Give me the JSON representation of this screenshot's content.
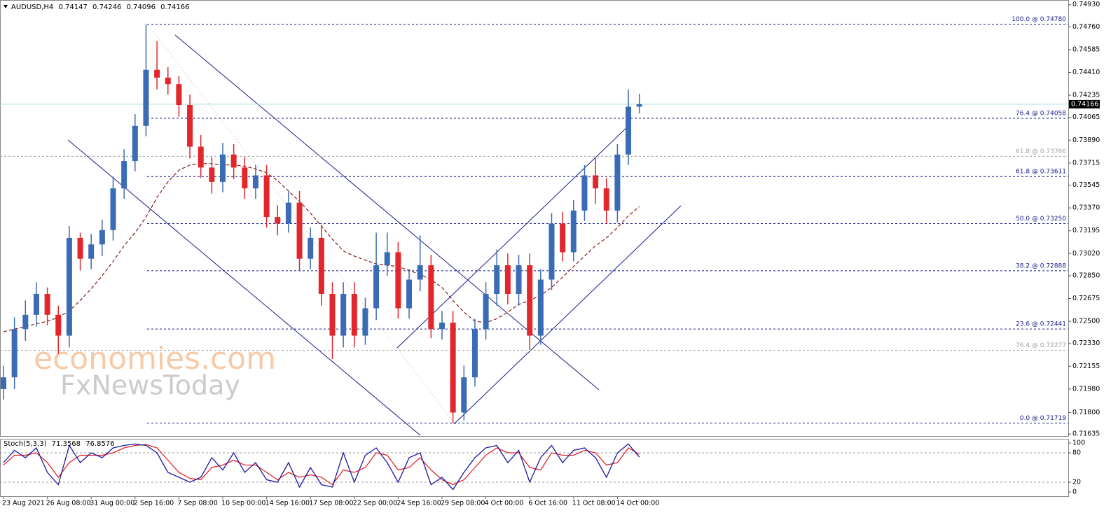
{
  "chart_data": {
    "type": "candlestick",
    "symbol": "AUDUSD,H4",
    "categories": [
      "23 Aug 2021",
      null,
      null,
      null,
      "26 Aug 08:00",
      null,
      null,
      null,
      "31 Aug 00:00",
      null,
      null,
      null,
      "2 Sep 16:00",
      null,
      null,
      null,
      "7 Sep 08:00",
      null,
      null,
      null,
      "10 Sep 00:00",
      null,
      null,
      null,
      "14 Sep 16:00",
      null,
      null,
      null,
      "17 Sep 08:00",
      null,
      null,
      null,
      "22 Sep 00:00",
      null,
      null,
      null,
      "24 Sep 16:00",
      null,
      null,
      null,
      "29 Sep 08:00",
      null,
      null,
      null,
      "4 Oct 00:00",
      null,
      null,
      null,
      "6 Oct 16:00",
      null,
      null,
      null,
      "11 Oct 08:00",
      null,
      null,
      null,
      "14 Oct 00:00",
      null,
      null
    ],
    "open": [
      0.7198,
      0.7207,
      0.7244,
      0.7255,
      0.7271,
      0.7255,
      0.7239,
      0.7314,
      0.7298,
      0.7309,
      0.732,
      0.7352,
      0.7373,
      0.74,
      0.7443,
      0.7437,
      0.7432,
      0.7416,
      0.7384,
      0.7368,
      0.7357,
      0.7378,
      0.7368,
      0.7352,
      0.7362,
      0.733,
      0.7325,
      0.7341,
      0.7298,
      0.7314,
      0.7271,
      0.7239,
      0.7271,
      0.7239,
      0.726,
      0.7293,
      0.7303,
      0.726,
      0.7282,
      0.7293,
      0.7244,
      0.7249,
      0.718,
      0.7207,
      0.7244,
      0.7271,
      0.7293,
      0.7271,
      0.7293,
      0.7239,
      0.7282,
      0.7325,
      0.7303,
      0.7335,
      0.7362,
      0.7352,
      0.7335,
      0.7378,
      0.74147
    ],
    "high": [
      0.7216,
      0.7253,
      0.7266,
      0.728,
      0.7276,
      0.7262,
      0.7323,
      0.7318,
      0.7317,
      0.7328,
      0.7361,
      0.7382,
      0.7409,
      0.7478,
      0.7465,
      0.7445,
      0.7438,
      0.7424,
      0.7393,
      0.7376,
      0.7387,
      0.7386,
      0.7376,
      0.737,
      0.737,
      0.7339,
      0.735,
      0.735,
      0.7322,
      0.7324,
      0.728,
      0.728,
      0.728,
      0.7268,
      0.7318,
      0.7318,
      0.7311,
      0.729,
      0.7316,
      0.7301,
      0.7258,
      0.7258,
      0.7216,
      0.7252,
      0.728,
      0.7305,
      0.7302,
      0.7301,
      0.7302,
      0.729,
      0.7333,
      0.7334,
      0.7343,
      0.737,
      0.7375,
      0.736,
      0.7386,
      0.7428,
      0.74246
    ],
    "low": [
      0.719,
      0.7198,
      0.7235,
      0.7246,
      0.7247,
      0.7225,
      0.723,
      0.7289,
      0.729,
      0.73,
      0.7312,
      0.7344,
      0.7365,
      0.7392,
      0.7428,
      0.7424,
      0.7407,
      0.7375,
      0.736,
      0.7348,
      0.7349,
      0.7359,
      0.7344,
      0.7344,
      0.7322,
      0.7316,
      0.7318,
      0.7289,
      0.729,
      0.7262,
      0.7221,
      0.723,
      0.723,
      0.7232,
      0.7251,
      0.7285,
      0.7252,
      0.7252,
      0.7273,
      0.7237,
      0.7236,
      0.71719,
      0.7174,
      0.72,
      0.7236,
      0.7262,
      0.7263,
      0.7262,
      0.7228,
      0.7232,
      0.7274,
      0.7296,
      0.7296,
      0.7327,
      0.734,
      0.7325,
      0.7326,
      0.737,
      0.74096
    ],
    "close": [
      0.7207,
      0.7244,
      0.7255,
      0.7271,
      0.7255,
      0.7239,
      0.7314,
      0.7298,
      0.7309,
      0.732,
      0.7352,
      0.7373,
      0.74,
      0.7443,
      0.7437,
      0.7432,
      0.7416,
      0.7384,
      0.7368,
      0.7357,
      0.7378,
      0.7368,
      0.7352,
      0.7362,
      0.733,
      0.7325,
      0.7341,
      0.7298,
      0.7314,
      0.7271,
      0.7239,
      0.7271,
      0.7239,
      0.726,
      0.7293,
      0.7303,
      0.726,
      0.7282,
      0.7293,
      0.7244,
      0.7249,
      0.718,
      0.7207,
      0.7244,
      0.7271,
      0.7293,
      0.7271,
      0.7293,
      0.7239,
      0.7282,
      0.7325,
      0.7303,
      0.7335,
      0.7362,
      0.7352,
      0.7335,
      0.7378,
      0.74147,
      0.74166
    ],
    "bull_color": "#3a6bb5",
    "bear_color": "#e3262b",
    "ma": {
      "color": "#8b1a1a",
      "values": [
        0.7242,
        0.7244,
        0.7246,
        0.7248,
        0.725,
        0.7253,
        0.7258,
        0.7266,
        0.7275,
        0.7285,
        0.7296,
        0.7308,
        0.7318,
        0.733,
        0.7345,
        0.7357,
        0.7366,
        0.737,
        0.7371,
        0.7371,
        0.737,
        0.737,
        0.7369,
        0.7367,
        0.7364,
        0.7358,
        0.735,
        0.7342,
        0.7333,
        0.7323,
        0.7313,
        0.7304,
        0.73,
        0.7297,
        0.7294,
        0.7293,
        0.7292,
        0.7289,
        0.7286,
        0.7282,
        0.7276,
        0.7266,
        0.7257,
        0.725,
        0.7249,
        0.7252,
        0.7257,
        0.7263,
        0.7266,
        0.727,
        0.7276,
        0.7284,
        0.7292,
        0.73,
        0.7308,
        0.7314,
        0.7322,
        0.7331,
        0.7338
      ]
    },
    "ylim": [
      0.71625,
      0.74955
    ],
    "yticks": [
      {
        "value": 0.7493,
        "label": "0.74930"
      },
      {
        "value": 0.7476,
        "label": "0.74760"
      },
      0.74585,
      {
        "value": 0.7441,
        "label": "0.74410"
      },
      0.74235,
      0.74065,
      {
        "value": 0.7389,
        "label": "0.73890"
      },
      0.73715,
      0.73545,
      {
        "value": 0.7337,
        "label": "0.73370"
      },
      0.73195,
      {
        "value": 0.7302,
        "label": "0.73020"
      },
      {
        "value": 0.7285,
        "label": "0.72850"
      },
      0.72675,
      {
        "value": 0.725,
        "label": "0.72500"
      },
      {
        "value": 0.7233,
        "label": "0.72330"
      },
      0.72155,
      {
        "value": 0.7198,
        "label": "0.71980"
      },
      {
        "value": 0.718,
        "label": "0.71800"
      },
      0.71635
    ],
    "levels": [
      {
        "label": "100.0 @ 0.74780",
        "value": 0.7478,
        "color": "#1a1a8c"
      },
      {
        "label": "76.4 @ 0.74058",
        "value": 0.74058,
        "color": "#1a1a8c"
      },
      {
        "label": "61.8 @ 0.73766",
        "value": 0.73766,
        "color": "#a0a0a0"
      },
      {
        "label": "61.8 @ 0.73611",
        "value": 0.73611,
        "color": "#1a1a8c"
      },
      {
        "label": "50.0 @ 0.73250",
        "value": 0.7325,
        "color": "#1a1a8c"
      },
      {
        "label": "38.2 @ 0.72888",
        "value": 0.72888,
        "color": "#1a1a8c"
      },
      {
        "label": "23.6 @ 0.72441",
        "value": 0.72441,
        "color": "#1a1a8c"
      },
      {
        "label": "76.4 @ 0.72277",
        "value": 0.72277,
        "color": "#a0a0a0"
      },
      {
        "label": "0.0 @ 0.71719",
        "value": 0.71719,
        "color": "#1a1a8c"
      }
    ],
    "current_price_color": "#a8dede",
    "watermark": [
      "economies.com",
      "FxNewsToday"
    ],
    "indicator": {
      "type": "stochastic",
      "title": "Stoch(5,3,3)",
      "series": [
        {
          "color": "#1a1aa0",
          "values": [
            60,
            85,
            70,
            90,
            40,
            15,
            95,
            60,
            80,
            70,
            90,
            95,
            98,
            95,
            80,
            40,
            30,
            20,
            30,
            70,
            45,
            80,
            40,
            60,
            25,
            20,
            60,
            10,
            50,
            15,
            10,
            80,
            20,
            75,
            90,
            60,
            20,
            70,
            80,
            15,
            30,
            5,
            40,
            70,
            90,
            95,
            60,
            85,
            20,
            70,
            95,
            60,
            85,
            90,
            70,
            30,
            80,
            98,
            71.3568
          ]
        },
        {
          "color": "#e3262b",
          "values": [
            55,
            75,
            75,
            80,
            60,
            30,
            60,
            75,
            75,
            75,
            80,
            90,
            95,
            97,
            90,
            65,
            40,
            28,
            25,
            50,
            55,
            65,
            55,
            55,
            40,
            25,
            40,
            30,
            35,
            30,
            15,
            45,
            40,
            50,
            80,
            75,
            45,
            50,
            70,
            45,
            25,
            15,
            25,
            50,
            75,
            90,
            80,
            80,
            50,
            45,
            80,
            75,
            75,
            85,
            80,
            55,
            60,
            90,
            76.8576
          ]
        }
      ],
      "ylim": [
        0,
        100
      ],
      "yticks": [
        0,
        20,
        80,
        100
      ],
      "levels": [
        20,
        80
      ]
    }
  }
}
